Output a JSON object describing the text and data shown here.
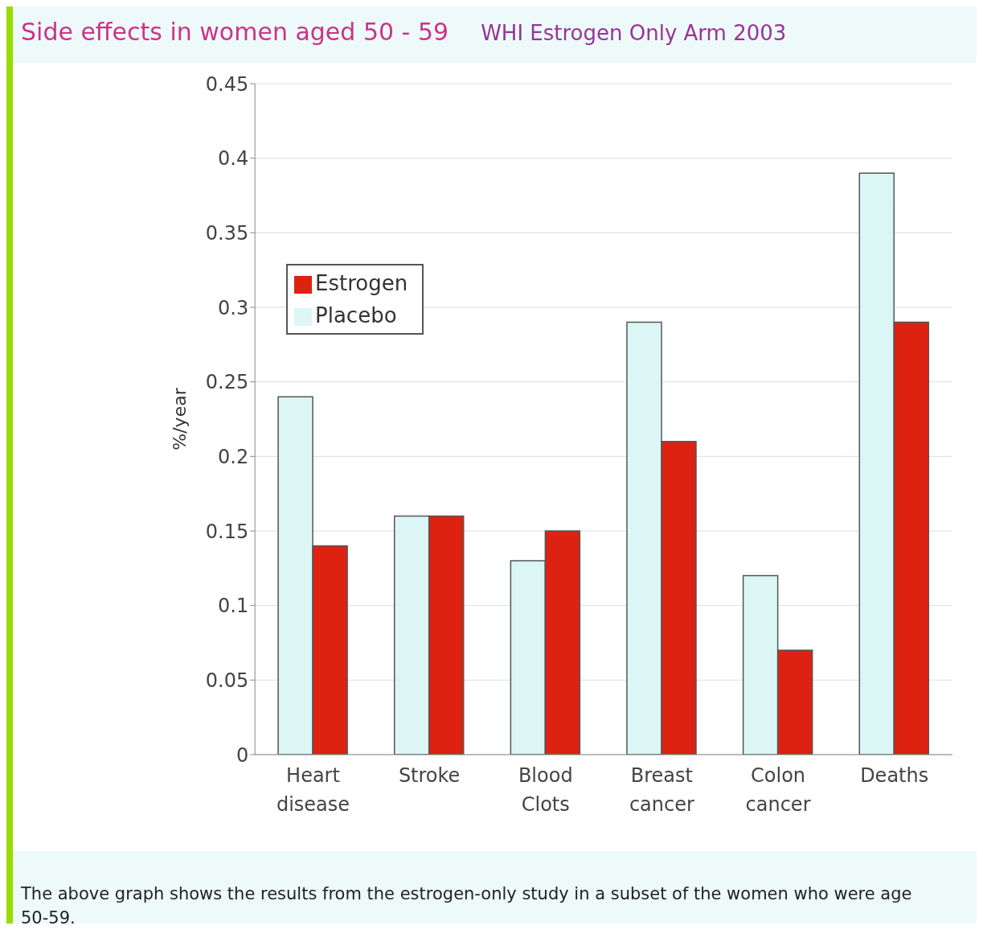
{
  "chart_data": {
    "type": "bar",
    "title": "Side effects in women aged 50 - 59",
    "subtitle": "WHI Estrogen Only Arm 2003",
    "ylabel": "%/year",
    "categories": [
      "Heart disease",
      "Stroke",
      "Blood Clots",
      "Breast cancer",
      "Colon cancer",
      "Deaths"
    ],
    "series": [
      {
        "name": "Placebo",
        "color": "#dcf6f6",
        "values": [
          0.24,
          0.16,
          0.13,
          0.29,
          0.12,
          0.39
        ]
      },
      {
        "name": "Estrogen",
        "color": "#dd2211",
        "values": [
          0.14,
          0.16,
          0.15,
          0.21,
          0.07,
          0.29
        ]
      }
    ],
    "ylim": [
      0,
      0.45
    ],
    "yticks": [
      0,
      0.05,
      0.1,
      0.15,
      0.2,
      0.25,
      0.3,
      0.35,
      0.4,
      0.45
    ],
    "grid": "y",
    "legend": "top left",
    "annotations": [
      "The above graph shows the results from the estrogen-only study in a subset of the women who were age 50-59."
    ]
  }
}
